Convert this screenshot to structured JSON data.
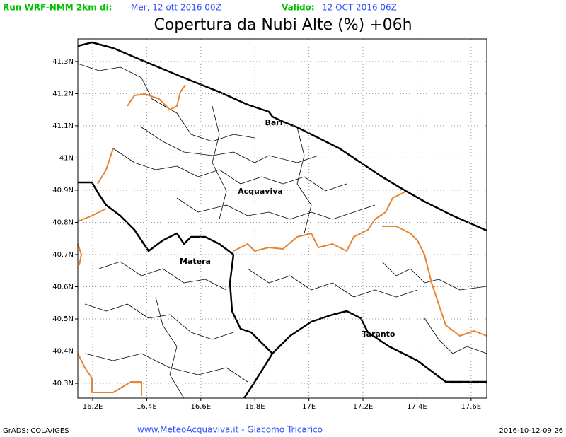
{
  "header": {
    "run_label": "Run WRF-NMM 2km di:",
    "run_date": "Mer, 12 ott 2016 00Z",
    "valid_label": "Valido:",
    "valid_date": "12 OCT 2016 06Z"
  },
  "title": "Copertura da Nubi Alte (%) +06h",
  "map": {
    "xlim": [
      16.145,
      17.658
    ],
    "ylim": [
      40.254,
      41.37
    ],
    "xticks": [
      {
        "value": 16.2,
        "label": "16.2E"
      },
      {
        "value": 16.4,
        "label": "16.4E"
      },
      {
        "value": 16.6,
        "label": "16.6E"
      },
      {
        "value": 16.8,
        "label": "16.8E"
      },
      {
        "value": 17,
        "label": "17E"
      },
      {
        "value": 17.2,
        "label": "17.2E"
      },
      {
        "value": 17.4,
        "label": "17.4E"
      },
      {
        "value": 17.6,
        "label": "17.6E"
      }
    ],
    "yticks": [
      {
        "value": 40.3,
        "label": "40.3N"
      },
      {
        "value": 40.4,
        "label": "40.4N"
      },
      {
        "value": 40.5,
        "label": "40.5N"
      },
      {
        "value": 40.6,
        "label": "40.6N"
      },
      {
        "value": 40.7,
        "label": "40.7N"
      },
      {
        "value": 40.8,
        "label": "40.8N"
      },
      {
        "value": 40.9,
        "label": "40.9N"
      },
      {
        "value": 41,
        "label": "41N"
      },
      {
        "value": 41.1,
        "label": "41.1N"
      },
      {
        "value": 41.2,
        "label": "41.2N"
      },
      {
        "value": 41.3,
        "label": "41.3N"
      }
    ],
    "cities": [
      "Bari",
      "Acquaviva",
      "Matera",
      "Taranto"
    ]
  },
  "footer": {
    "left": "GrADS: COLA/IGES",
    "center": "www.MeteoAcquaviva.it - Giacomo Tricarico",
    "right": "2016-10-12-09:26"
  }
}
